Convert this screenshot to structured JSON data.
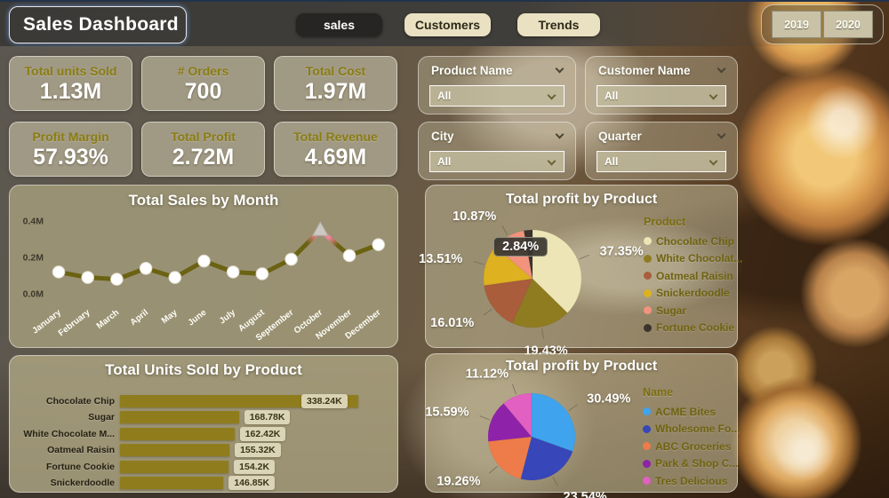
{
  "header": {
    "title": "Sales Dashboard",
    "nav": [
      {
        "label": "sales",
        "active": true
      },
      {
        "label": "Customers",
        "active": false
      },
      {
        "label": "Trends",
        "active": false
      }
    ],
    "years": [
      "2019",
      "2020"
    ]
  },
  "kpis": [
    {
      "label": "Total units Sold",
      "value": "1.13M"
    },
    {
      "label": "# Orders",
      "value": "700"
    },
    {
      "label": "Total Cost",
      "value": "1.97M"
    },
    {
      "label": "Profit Margin",
      "value": "57.93%"
    },
    {
      "label": "Total Profit",
      "value": "2.72M"
    },
    {
      "label": "Total Revenue",
      "value": "4.69M"
    }
  ],
  "filters": [
    {
      "label": "Product Name",
      "value": "All"
    },
    {
      "label": "Customer Name",
      "value": "All"
    },
    {
      "label": "City",
      "value": "All"
    },
    {
      "label": "Quarter",
      "value": "All"
    }
  ],
  "chart_data": [
    {
      "type": "line",
      "title": "Total Sales by Month",
      "x": [
        "January",
        "February",
        "March",
        "April",
        "May",
        "June",
        "July",
        "August",
        "September",
        "October",
        "November",
        "December"
      ],
      "values": [
        0.12,
        0.09,
        0.08,
        0.14,
        0.09,
        0.18,
        0.12,
        0.11,
        0.19,
        0.35,
        0.21,
        0.27
      ],
      "unit": "M",
      "ylim": [
        0,
        0.4
      ],
      "yticks": [
        "0.0M",
        "0.2M",
        "0.4M"
      ],
      "ytick_values": [
        0,
        0.2,
        0.4
      ],
      "line_color": "#6b6212",
      "highlight_index": 9,
      "highlight_color": "#ef8498",
      "highlight_marker": "gray-triangle",
      "grid": false,
      "legend_position": "none"
    },
    {
      "type": "pie",
      "title": "Total profit by Product",
      "legend_title": "Product",
      "legend_position": "right",
      "slices": [
        {
          "label": "Chocolate Chip",
          "pct": 37.35,
          "pct_label": "37.35%",
          "color": "#ede5b5",
          "callout": false
        },
        {
          "label": "White Chocolat...",
          "pct": 19.43,
          "pct_label": "19.43%",
          "color": "#8f7c20",
          "callout": false
        },
        {
          "label": "Oatmeal Raisin",
          "pct": 16.01,
          "pct_label": "16.01%",
          "color": "#a95d3b",
          "callout": false
        },
        {
          "label": "Snickerdoodle",
          "pct": 13.51,
          "pct_label": "13.51%",
          "color": "#ddb11f",
          "callout": false
        },
        {
          "label": "Sugar",
          "pct": 10.87,
          "pct_label": "10.87%",
          "color": "#f2937e",
          "callout": false
        },
        {
          "label": "Fortune Cookie",
          "pct": 2.84,
          "pct_label": "2.84%",
          "color": "#3b342c",
          "callout": true
        }
      ]
    },
    {
      "type": "bar",
      "title": "Total Units Sold by Product",
      "categories": [
        "Chocolate Chip",
        "Sugar",
        "White Chocolate M...",
        "Oatmeal Raisin",
        "Fortune Cookie",
        "Snickerdoodle"
      ],
      "values": [
        338.24,
        168.78,
        162.42,
        155.32,
        154.2,
        146.85
      ],
      "value_labels": [
        "338.24K",
        "168.78K",
        "162.42K",
        "155.32K",
        "154.2K",
        "146.85K"
      ],
      "unit": "K",
      "bar_color": "#8f7d1d",
      "orientation": "horizontal"
    },
    {
      "type": "pie",
      "title": "Total profit by Product",
      "legend_title": "Name",
      "legend_position": "right",
      "slices": [
        {
          "label": "ACME Bites",
          "pct": 30.49,
          "pct_label": "30.49%",
          "color": "#3fa3ed",
          "callout": false
        },
        {
          "label": "Wholesome Fo...",
          "pct": 23.54,
          "pct_label": "23.54%",
          "color": "#3746b8",
          "callout": false
        },
        {
          "label": "ABC Groceries",
          "pct": 19.26,
          "pct_label": "19.26%",
          "color": "#ee7c4a",
          "callout": false
        },
        {
          "label": "Park & Shop C...",
          "pct": 15.59,
          "pct_label": "15.59%",
          "color": "#8e22a8",
          "callout": false
        },
        {
          "label": "Tres Delicious",
          "pct": 11.12,
          "pct_label": "11.12%",
          "color": "#e160c2",
          "callout": false
        }
      ]
    }
  ],
  "colors": {
    "accent_olive": "#8a7c12",
    "panel_tan": "#aba58e",
    "kpi_value": "#ffffff"
  }
}
